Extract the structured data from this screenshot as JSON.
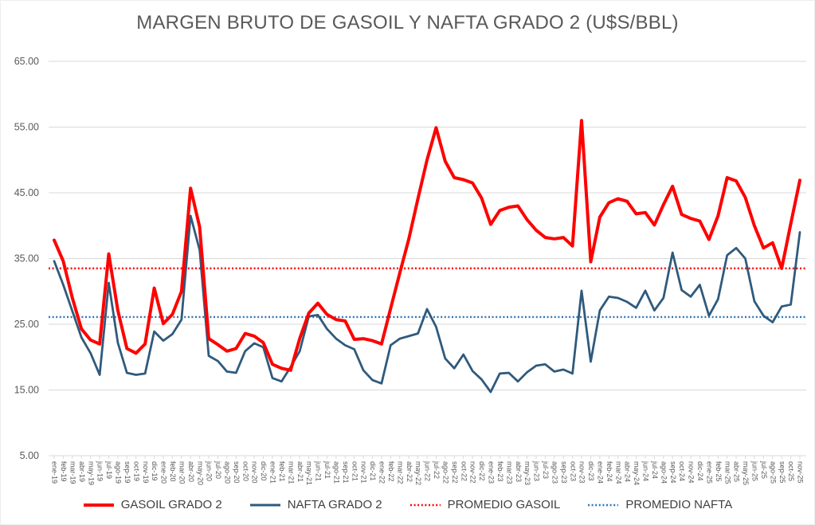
{
  "title": "MARGEN BRUTO DE GASOIL Y NAFTA GRADO 2 (U$S/BBL)",
  "colors": {
    "gasoil_line": "#FF0000",
    "nafta_line": "#2F5A7D",
    "promedio_gasoil_line": "#FF0000",
    "promedio_nafta_line": "#2E75B6",
    "gridline": "#D9D9D9",
    "axis_text": "#595959",
    "legend_text": "#404040",
    "title_text": "#595959",
    "background": "#FFFFFF"
  },
  "y_axis": {
    "tick_labels": [
      "65.00",
      "55.00",
      "45.00",
      "35.00",
      "25.00",
      "15.00",
      "5.00"
    ],
    "tick_values": [
      65,
      55,
      45,
      35,
      25,
      15,
      5
    ]
  },
  "legend": {
    "items": [
      {
        "label": "GASOIL GRADO 2",
        "style": "solid",
        "color": "#FF0000"
      },
      {
        "label": "NAFTA GRADO 2",
        "style": "solid",
        "color": "#2F5A7D"
      },
      {
        "label": "PROMEDIO GASOIL",
        "style": "dotted",
        "color": "#FF0000"
      },
      {
        "label": "PROMEDIO NAFTA",
        "style": "dotted",
        "color": "#2E75B6"
      }
    ]
  },
  "chart_data": {
    "type": "line",
    "title": "MARGEN BRUTO DE GASOIL Y NAFTA GRADO 2 (U$S/BBL)",
    "ylim": [
      5,
      65
    ],
    "grid": "horizontal",
    "legend_position": "bottom",
    "x": [
      "ene-19",
      "feb-19",
      "mar-19",
      "abr-19",
      "may-19",
      "jun-19",
      "jul-19",
      "ago-19",
      "sep-19",
      "oct-19",
      "nov-19",
      "dic-19",
      "ene-20",
      "feb-20",
      "mar-20",
      "abr-20",
      "may-20",
      "jun-20",
      "jul-20",
      "ago-20",
      "sep-20",
      "oct-20",
      "nov-20",
      "dic-20",
      "ene-21",
      "feb-21",
      "mar-21",
      "abr-21",
      "may-21",
      "jun-21",
      "jul-21",
      "ago-21",
      "sep-21",
      "oct-21",
      "nov-21",
      "dic-21",
      "ene-22",
      "feb-22",
      "mar-22",
      "abr-22",
      "may-22",
      "jun-22",
      "jul-22",
      "ago-22",
      "sep-22",
      "oct-22",
      "nov-22",
      "dic-22",
      "ene-23",
      "feb-23",
      "mar-23",
      "abr-23",
      "may-23",
      "jun-23",
      "jul-23",
      "ago-23",
      "sep-23",
      "oct-23",
      "nov-23",
      "dic-23",
      "ene-24",
      "feb-24",
      "mar-24",
      "abr-24",
      "may-24",
      "jun-24",
      "jul-24",
      "ago-24",
      "sep-24",
      "oct-24",
      "nov-24",
      "dic-24",
      "ene-25",
      "feb-25",
      "mar-25",
      "abr-25",
      "may-25",
      "jun-25",
      "jul-25",
      "ago-25",
      "sep-25",
      "oct-25",
      "nov-25"
    ],
    "series": [
      {
        "name": "GASOIL GRADO 2",
        "color": "#FF0000",
        "values": [
          37.8,
          34.6,
          29.0,
          24.3,
          22.6,
          22.0,
          35.7,
          27.1,
          21.3,
          20.6,
          22.0,
          30.5,
          25.1,
          26.5,
          30.0,
          45.7,
          39.8,
          22.8,
          21.9,
          20.9,
          21.3,
          23.6,
          23.2,
          22.2,
          18.9,
          18.3,
          18.0,
          22.8,
          26.7,
          28.2,
          26.5,
          25.7,
          25.5,
          22.7,
          22.8,
          22.5,
          22.0,
          27.4,
          32.8,
          38.0,
          44.1,
          50.0,
          54.9,
          49.8,
          47.3,
          47.0,
          46.5,
          44.2,
          40.2,
          42.3,
          42.8,
          43.0,
          40.9,
          39.3,
          38.2,
          38.0,
          38.2,
          36.9,
          56.0,
          34.5,
          41.3,
          43.5,
          44.1,
          43.7,
          41.8,
          42.0,
          40.1,
          43.2,
          46.0,
          41.7,
          41.1,
          40.7,
          37.9,
          41.5,
          47.3,
          46.8,
          44.3,
          40.0,
          36.6,
          37.4,
          33.5,
          40.3,
          46.9
        ]
      },
      {
        "name": "NAFTA GRADO 2",
        "color": "#2F5A7D",
        "values": [
          34.6,
          31.0,
          27.0,
          23.0,
          20.6,
          17.3,
          31.3,
          22.2,
          17.6,
          17.3,
          17.5,
          23.9,
          22.5,
          23.5,
          25.7,
          41.5,
          36.3,
          20.2,
          19.4,
          17.8,
          17.6,
          20.9,
          22.1,
          21.5,
          16.8,
          16.3,
          18.5,
          20.9,
          26.2,
          26.4,
          24.3,
          22.8,
          21.8,
          21.2,
          18.0,
          16.5,
          16.0,
          21.8,
          22.8,
          23.2,
          23.6,
          27.3,
          24.6,
          19.8,
          18.3,
          20.4,
          17.9,
          16.6,
          14.7,
          17.5,
          17.6,
          16.3,
          17.7,
          18.7,
          18.9,
          17.8,
          18.1,
          17.5,
          30.1,
          19.3,
          27.1,
          29.2,
          29.0,
          28.4,
          27.5,
          30.1,
          27.1,
          29.0,
          35.9,
          30.2,
          29.2,
          31.0,
          26.3,
          28.8,
          35.5,
          36.6,
          35.0,
          28.5,
          26.3,
          25.3,
          27.7,
          28.0,
          39.0
        ]
      }
    ],
    "reference_lines": [
      {
        "name": "PROMEDIO GASOIL",
        "value": 33.5,
        "style": "dotted",
        "color": "#FF0000"
      },
      {
        "name": "PROMEDIO NAFTA",
        "value": 26.1,
        "style": "dotted",
        "color": "#2E75B6"
      }
    ]
  }
}
